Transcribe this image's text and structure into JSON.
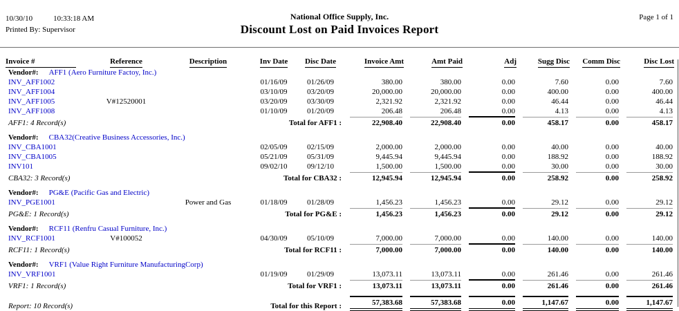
{
  "page_header": {
    "date": "10/30/10",
    "time": "10:33:18 AM",
    "printed_by": "Printed By: Supervisor",
    "company": "National Office Supply, Inc.",
    "report_title": "Discount Lost on Paid Invoices Report",
    "page_info": "Page 1 of 1"
  },
  "table": {
    "columns": [
      "Invoice #",
      "Reference",
      "Description",
      "Inv Date",
      "Disc Date",
      "Invoice Amt",
      "Amt Paid",
      "Adj",
      "Sugg Disc",
      "Comm Disc",
      "Disc Lost"
    ],
    "vendor_label": "Vendor#:",
    "vendors": [
      {
        "vendor_name": "AFF1 (Aero Furniture Factoy, Inc.)",
        "rows": [
          {
            "invoice": "INV_AFF1002",
            "reference": "",
            "description": "",
            "inv_date": "01/16/09",
            "disc_date": "01/26/09",
            "amounts": [
              "380.00",
              "380.00",
              "0.00",
              "7.60",
              "0.00",
              "7.60"
            ]
          },
          {
            "invoice": "INV_AFF1004",
            "reference": "",
            "description": "",
            "inv_date": "03/10/09",
            "disc_date": "03/20/09",
            "amounts": [
              "20,000.00",
              "20,000.00",
              "0.00",
              "400.00",
              "0.00",
              "400.00"
            ]
          },
          {
            "invoice": "INV_AFF1005",
            "reference": "V#12520001",
            "description": "",
            "inv_date": "03/20/09",
            "disc_date": "03/30/09",
            "amounts": [
              "2,321.92",
              "2,321.92",
              "0.00",
              "46.44",
              "0.00",
              "46.44"
            ]
          },
          {
            "invoice": "INV_AFF1008",
            "reference": "",
            "description": "",
            "inv_date": "01/10/09",
            "disc_date": "01/20/09",
            "amounts": [
              "206.48",
              "206.48",
              "0.00",
              "4.13",
              "0.00",
              "4.13"
            ]
          }
        ],
        "records_label": "AFF1: 4 Record(s)",
        "total_label": "Total for AFF1 :",
        "totals": [
          "22,908.40",
          "22,908.40",
          "0.00",
          "458.17",
          "0.00",
          "458.17"
        ]
      },
      {
        "vendor_name": "CBA32(Creative Business Accessories, Inc.)",
        "rows": [
          {
            "invoice": "INV_CBA1001",
            "reference": "",
            "description": "",
            "inv_date": "02/05/09",
            "disc_date": "02/15/09",
            "amounts": [
              "2,000.00",
              "2,000.00",
              "0.00",
              "40.00",
              "0.00",
              "40.00"
            ]
          },
          {
            "invoice": "INV_CBA1005",
            "reference": "",
            "description": "",
            "inv_date": "05/21/09",
            "disc_date": "05/31/09",
            "amounts": [
              "9,445.94",
              "9,445.94",
              "0.00",
              "188.92",
              "0.00",
              "188.92"
            ]
          },
          {
            "invoice": "INV101",
            "reference": "",
            "description": "",
            "inv_date": "09/02/10",
            "disc_date": "09/12/10",
            "amounts": [
              "1,500.00",
              "1,500.00",
              "0.00",
              "30.00",
              "0.00",
              "30.00"
            ]
          }
        ],
        "records_label": "CBA32: 3 Record(s)",
        "total_label": "Total for CBA32 :",
        "totals": [
          "12,945.94",
          "12,945.94",
          "0.00",
          "258.92",
          "0.00",
          "258.92"
        ]
      },
      {
        "vendor_name": "PG&E (Pacific Gas and Electric)",
        "rows": [
          {
            "invoice": "INV_PGE1001",
            "reference": "",
            "description": "Power and Gas",
            "inv_date": "01/18/09",
            "disc_date": "01/28/09",
            "amounts": [
              "1,456.23",
              "1,456.23",
              "0.00",
              "29.12",
              "0.00",
              "29.12"
            ]
          }
        ],
        "records_label": "PG&E: 1 Record(s)",
        "total_label": "Total for PG&E :",
        "totals": [
          "1,456.23",
          "1,456.23",
          "0.00",
          "29.12",
          "0.00",
          "29.12"
        ]
      },
      {
        "vendor_name": "RCF11 (Renfru Casual Furniture, Inc.)",
        "rows": [
          {
            "invoice": "INV_RCF1001",
            "reference": "V#100052",
            "description": "",
            "inv_date": "04/30/09",
            "disc_date": "05/10/09",
            "amounts": [
              "7,000.00",
              "7,000.00",
              "0.00",
              "140.00",
              "0.00",
              "140.00"
            ]
          }
        ],
        "records_label": "RCF11: 1 Record(s)",
        "total_label": "Total for RCF11 :",
        "totals": [
          "7,000.00",
          "7,000.00",
          "0.00",
          "140.00",
          "0.00",
          "140.00"
        ]
      },
      {
        "vendor_name": "VRF1 (Value Right Furniture ManufacturingCorp)",
        "rows": [
          {
            "invoice": "INV_VRF1001",
            "reference": "",
            "description": "",
            "inv_date": "01/19/09",
            "disc_date": "01/29/09",
            "amounts": [
              "13,073.11",
              "13,073.11",
              "0.00",
              "261.46",
              "0.00",
              "261.46"
            ]
          }
        ],
        "records_label": "VRF1: 1 Record(s)",
        "total_label": "Total for VRF1 :",
        "totals": [
          "13,073.11",
          "13,073.11",
          "0.00",
          "261.46",
          "0.00",
          "261.46"
        ]
      }
    ],
    "report_summary": {
      "records_label": "Report: 10 Record(s)",
      "total_label": "Total for this Report :",
      "totals": [
        "57,383.68",
        "57,383.68",
        "0.00",
        "1,147.67",
        "0.00",
        "1,147.67"
      ]
    }
  }
}
